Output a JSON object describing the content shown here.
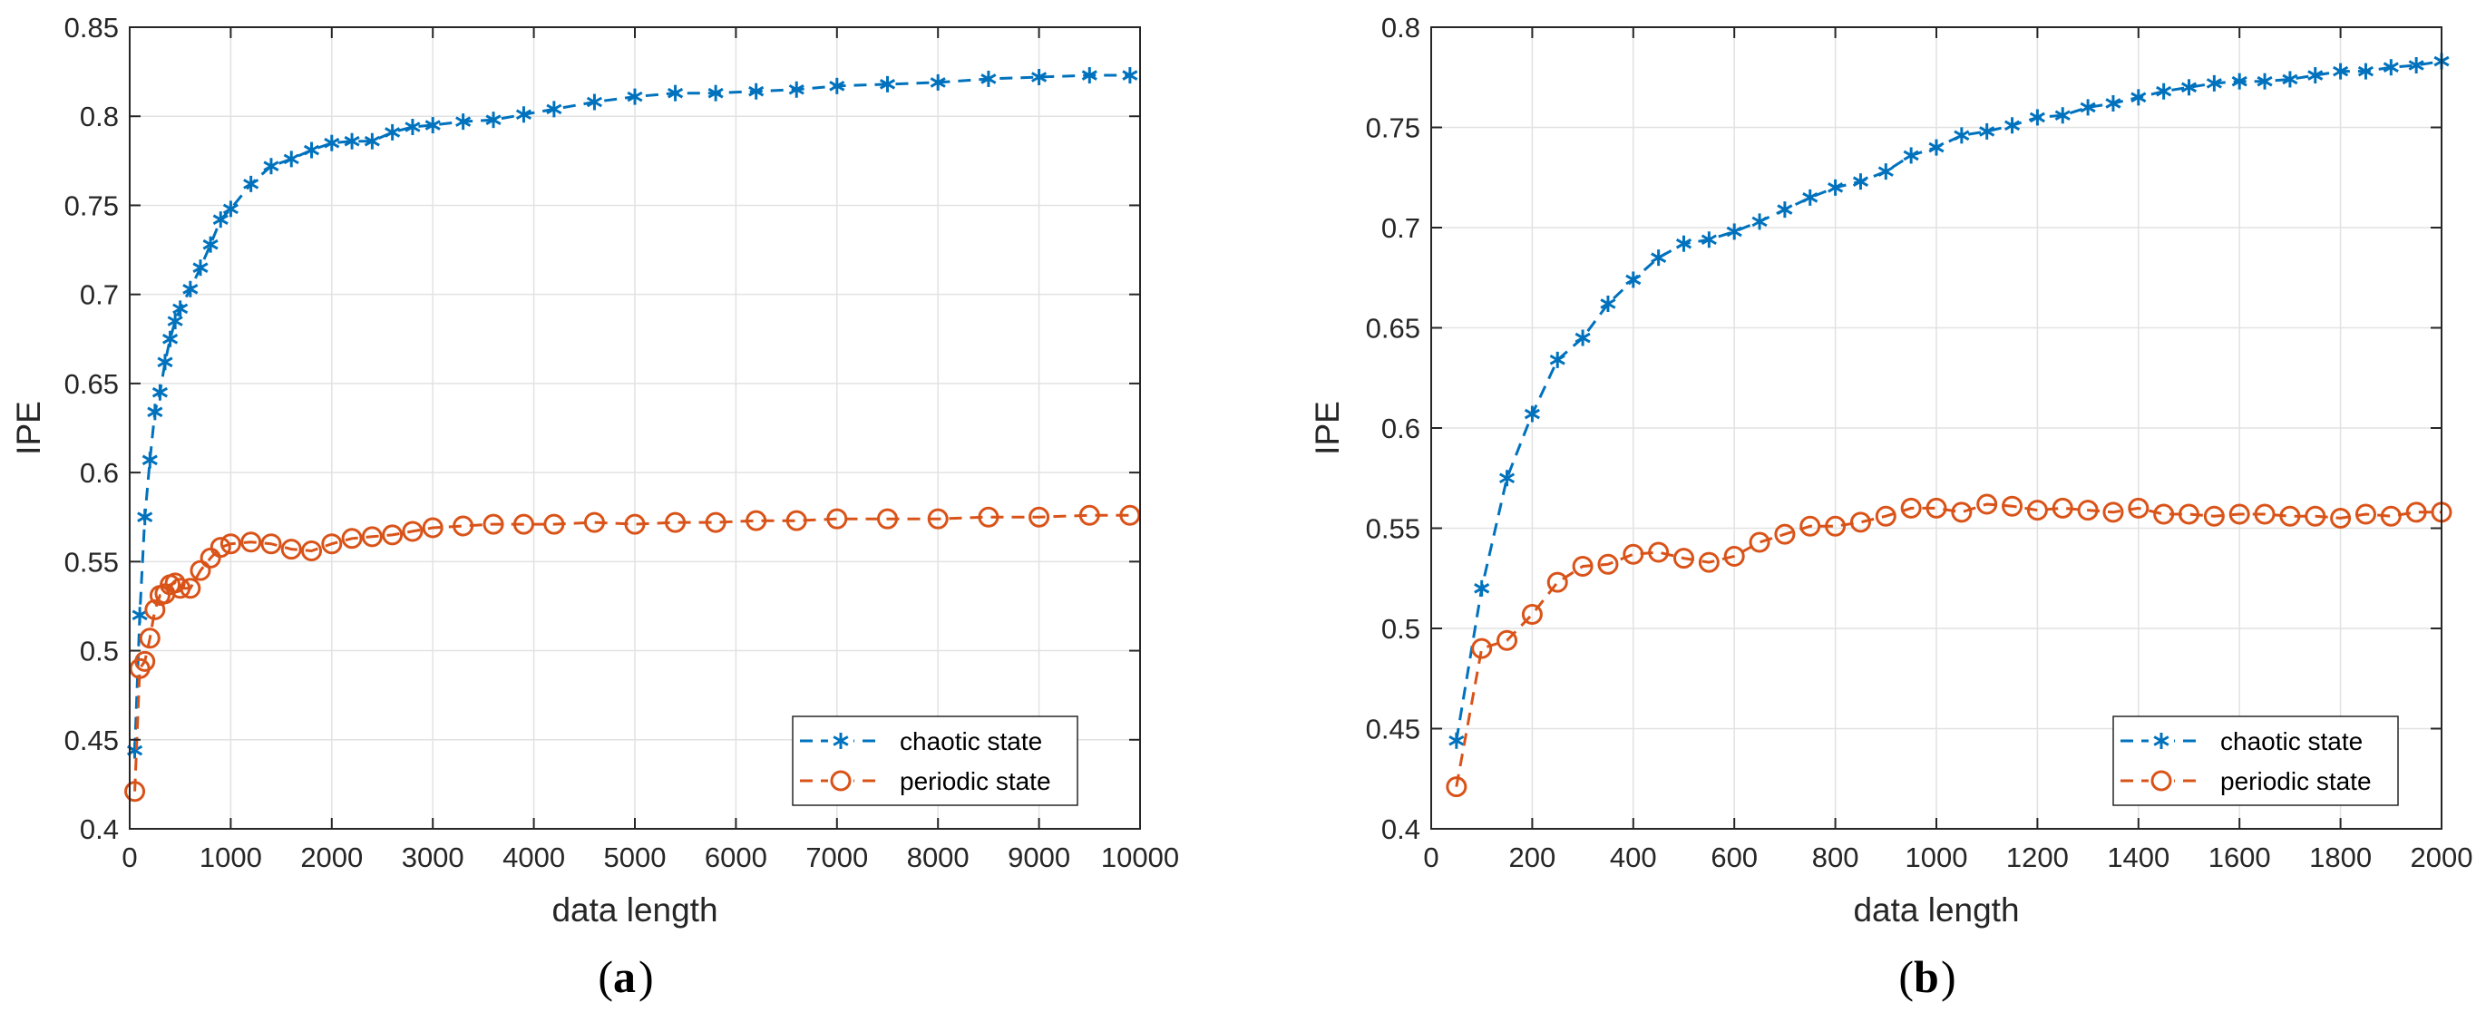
{
  "colors": {
    "chaotic": "#0072BD",
    "periodic": "#D95319",
    "grid": "#e2e2e2",
    "axis": "#262626"
  },
  "chart_data": [
    {
      "type": "line",
      "panel_label": "a",
      "xlabel": "data length",
      "ylabel": "IPE",
      "xlim": [
        0,
        10000
      ],
      "ylim": [
        0.4,
        0.85
      ],
      "xticks": [
        0,
        1000,
        2000,
        3000,
        4000,
        5000,
        6000,
        7000,
        8000,
        9000,
        10000
      ],
      "yticks": [
        0.4,
        0.45,
        0.5,
        0.55,
        0.6,
        0.65,
        0.7,
        0.75,
        0.8,
        0.85
      ],
      "xtick_labels": [
        "0",
        "1000",
        "2000",
        "3000",
        "4000",
        "5000",
        "6000",
        "7000",
        "8000",
        "9000",
        "10000"
      ],
      "ytick_labels": [
        "0.4",
        "0.45",
        "0.5",
        "0.55",
        "0.6",
        "0.65",
        "0.7",
        "0.75",
        "0.8",
        "0.85"
      ],
      "grid": true,
      "legend_position": "bottom-right",
      "series": [
        {
          "name": "chaotic state",
          "marker": "asterisk",
          "x": [
            50,
            100,
            150,
            200,
            250,
            300,
            350,
            400,
            450,
            500,
            600,
            700,
            800,
            900,
            1000,
            1200,
            1400,
            1600,
            1800,
            2000,
            2200,
            2400,
            2600,
            2800,
            3000,
            3300,
            3600,
            3900,
            4200,
            4600,
            5000,
            5400,
            5800,
            6200,
            6600,
            7000,
            7500,
            8000,
            8500,
            9000,
            9500,
            9900
          ],
          "y": [
            0.444,
            0.52,
            0.575,
            0.607,
            0.634,
            0.645,
            0.662,
            0.675,
            0.685,
            0.692,
            0.703,
            0.715,
            0.728,
            0.742,
            0.748,
            0.762,
            0.772,
            0.776,
            0.781,
            0.785,
            0.786,
            0.786,
            0.791,
            0.794,
            0.795,
            0.797,
            0.798,
            0.801,
            0.804,
            0.808,
            0.811,
            0.813,
            0.813,
            0.814,
            0.815,
            0.817,
            0.818,
            0.819,
            0.821,
            0.822,
            0.823,
            0.823
          ]
        },
        {
          "name": "periodic state",
          "marker": "circle",
          "x": [
            50,
            100,
            150,
            200,
            250,
            300,
            350,
            400,
            450,
            500,
            600,
            700,
            800,
            900,
            1000,
            1200,
            1400,
            1600,
            1800,
            2000,
            2200,
            2400,
            2600,
            2800,
            3000,
            3300,
            3600,
            3900,
            4200,
            4600,
            5000,
            5400,
            5800,
            6200,
            6600,
            7000,
            7500,
            8000,
            8500,
            9000,
            9500,
            9900
          ],
          "y": [
            0.421,
            0.49,
            0.494,
            0.507,
            0.523,
            0.531,
            0.532,
            0.537,
            0.538,
            0.535,
            0.535,
            0.545,
            0.552,
            0.558,
            0.56,
            0.561,
            0.56,
            0.557,
            0.556,
            0.56,
            0.563,
            0.564,
            0.565,
            0.567,
            0.569,
            0.57,
            0.571,
            0.571,
            0.571,
            0.572,
            0.571,
            0.572,
            0.572,
            0.573,
            0.573,
            0.574,
            0.574,
            0.574,
            0.575,
            0.575,
            0.576,
            0.576
          ]
        }
      ]
    },
    {
      "type": "line",
      "panel_label": "b",
      "xlabel": "data length",
      "ylabel": "IPE",
      "xlim": [
        0,
        2000
      ],
      "ylim": [
        0.4,
        0.8
      ],
      "xticks": [
        0,
        200,
        400,
        600,
        800,
        1000,
        1200,
        1400,
        1600,
        1800,
        2000
      ],
      "yticks": [
        0.4,
        0.45,
        0.5,
        0.55,
        0.6,
        0.65,
        0.7,
        0.75,
        0.8
      ],
      "xtick_labels": [
        "0",
        "200",
        "400",
        "600",
        "800",
        "1000",
        "1200",
        "1400",
        "1600",
        "1800",
        "2000"
      ],
      "ytick_labels": [
        "0.4",
        "0.45",
        "0.5",
        "0.55",
        "0.6",
        "0.65",
        "0.7",
        "0.75",
        "0.8"
      ],
      "grid": true,
      "legend_position": "bottom-right",
      "series": [
        {
          "name": "chaotic state",
          "marker": "asterisk",
          "x": [
            50,
            100,
            150,
            200,
            250,
            300,
            350,
            400,
            450,
            500,
            550,
            600,
            650,
            700,
            750,
            800,
            850,
            900,
            950,
            1000,
            1050,
            1100,
            1150,
            1200,
            1250,
            1300,
            1350,
            1400,
            1450,
            1500,
            1550,
            1600,
            1650,
            1700,
            1750,
            1800,
            1850,
            1900,
            1950,
            2000
          ],
          "y": [
            0.444,
            0.52,
            0.575,
            0.607,
            0.634,
            0.645,
            0.662,
            0.674,
            0.685,
            0.692,
            0.694,
            0.698,
            0.703,
            0.709,
            0.715,
            0.72,
            0.723,
            0.728,
            0.736,
            0.74,
            0.746,
            0.748,
            0.751,
            0.755,
            0.756,
            0.76,
            0.762,
            0.765,
            0.768,
            0.77,
            0.772,
            0.773,
            0.773,
            0.774,
            0.776,
            0.778,
            0.778,
            0.78,
            0.781,
            0.783
          ]
        },
        {
          "name": "periodic state",
          "marker": "circle",
          "x": [
            50,
            100,
            150,
            200,
            250,
            300,
            350,
            400,
            450,
            500,
            550,
            600,
            650,
            700,
            750,
            800,
            850,
            900,
            950,
            1000,
            1050,
            1100,
            1150,
            1200,
            1250,
            1300,
            1350,
            1400,
            1450,
            1500,
            1550,
            1600,
            1650,
            1700,
            1750,
            1800,
            1850,
            1900,
            1950,
            2000
          ],
          "y": [
            0.421,
            0.49,
            0.494,
            0.507,
            0.523,
            0.531,
            0.532,
            0.537,
            0.538,
            0.535,
            0.533,
            0.536,
            0.543,
            0.547,
            0.551,
            0.551,
            0.553,
            0.556,
            0.56,
            0.56,
            0.558,
            0.562,
            0.561,
            0.559,
            0.56,
            0.559,
            0.558,
            0.56,
            0.557,
            0.557,
            0.556,
            0.557,
            0.557,
            0.556,
            0.556,
            0.555,
            0.557,
            0.556,
            0.558,
            0.558
          ]
        }
      ]
    }
  ]
}
